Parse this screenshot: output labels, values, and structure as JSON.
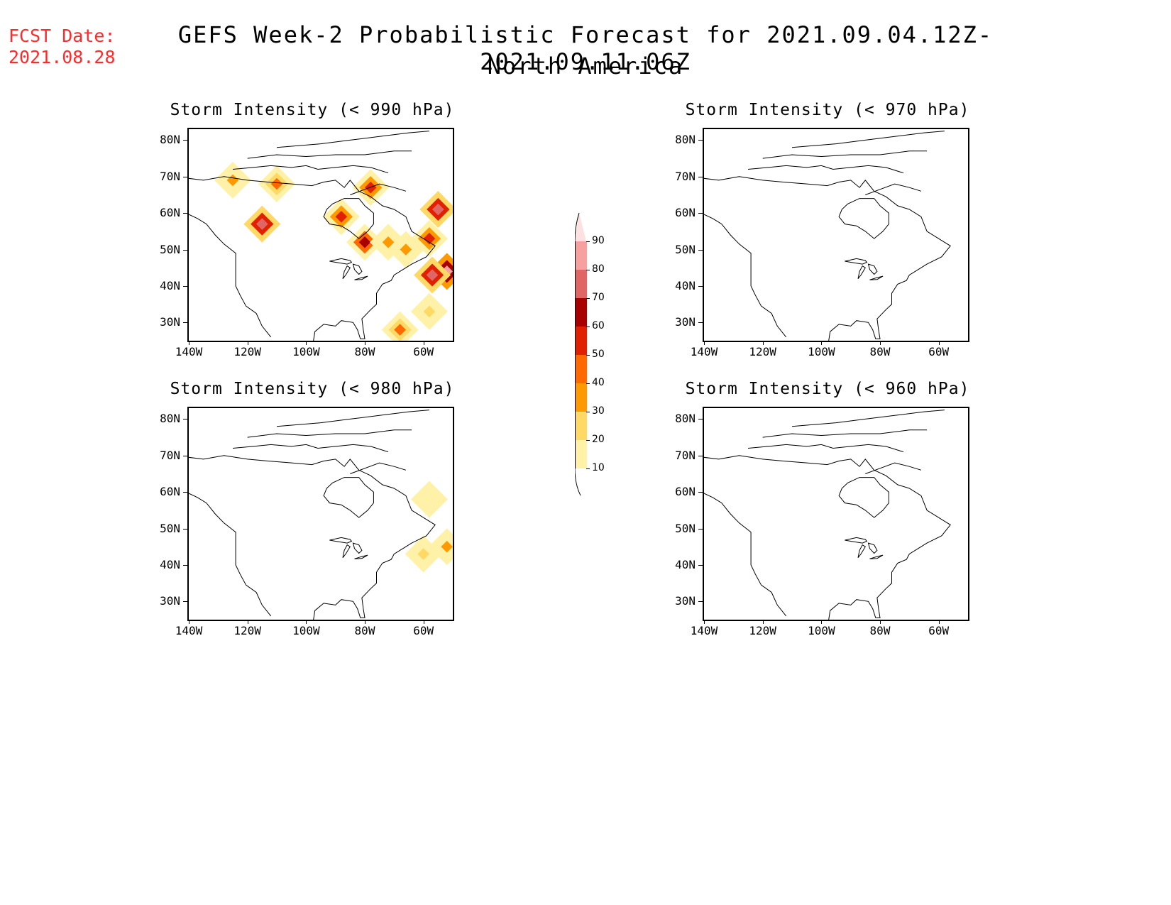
{
  "header": {
    "fcst_line1": "FCST Date:",
    "fcst_line2": "2021.08.28",
    "title": "GEFS Week-2 Probabilistic Forecast for 2021.09.04.12Z-2021.09.11.06Z",
    "subtitle": "North America"
  },
  "panels": [
    {
      "title": "Storm Intensity (< 990 hPa)",
      "threshold_hpa": 990
    },
    {
      "title": "Storm Intensity (< 970 hPa)",
      "threshold_hpa": 970
    },
    {
      "title": "Storm Intensity (< 980 hPa)",
      "threshold_hpa": 980
    },
    {
      "title": "Storm Intensity (< 960 hPa)",
      "threshold_hpa": 960
    }
  ],
  "axes": {
    "lat_labels": [
      "80N",
      "70N",
      "60N",
      "50N",
      "40N",
      "30N"
    ],
    "lon_labels": [
      "140W",
      "120W",
      "100W",
      "80W",
      "60W"
    ]
  },
  "colorbar": {
    "levels": [
      "90",
      "80",
      "70",
      "60",
      "50",
      "40",
      "30",
      "20",
      "10"
    ],
    "colors": [
      "#f6a0a0",
      "#e06666",
      "#a80000",
      "#e02000",
      "#ff6a00",
      "#ff9900",
      "#ffd966",
      "#fff2a8"
    ]
  },
  "hotspots_990": [
    {
      "lon": -115,
      "lat": 57,
      "level": 80
    },
    {
      "lon": -80,
      "lat": 52,
      "level": 70
    },
    {
      "lon": -78,
      "lat": 67,
      "level": 60
    },
    {
      "lon": -88,
      "lat": 59,
      "level": 60
    },
    {
      "lon": -55,
      "lat": 61,
      "level": 80
    },
    {
      "lon": -52,
      "lat": 44,
      "level": 90
    },
    {
      "lon": -57,
      "lat": 43,
      "level": 80
    },
    {
      "lon": -58,
      "lat": 53,
      "level": 60
    },
    {
      "lon": -66,
      "lat": 50,
      "level": 40
    },
    {
      "lon": -72,
      "lat": 52,
      "level": 40
    },
    {
      "lon": -125,
      "lat": 69,
      "level": 40
    },
    {
      "lon": -110,
      "lat": 68,
      "level": 50
    },
    {
      "lon": -68,
      "lat": 28,
      "level": 50
    },
    {
      "lon": -58,
      "lat": 33,
      "level": 30
    }
  ],
  "hotspots_980": [
    {
      "lon": -52,
      "lat": 45,
      "level": 40
    },
    {
      "lon": -60,
      "lat": 43,
      "level": 30
    },
    {
      "lon": -58,
      "lat": 58,
      "level": 20
    }
  ]
}
